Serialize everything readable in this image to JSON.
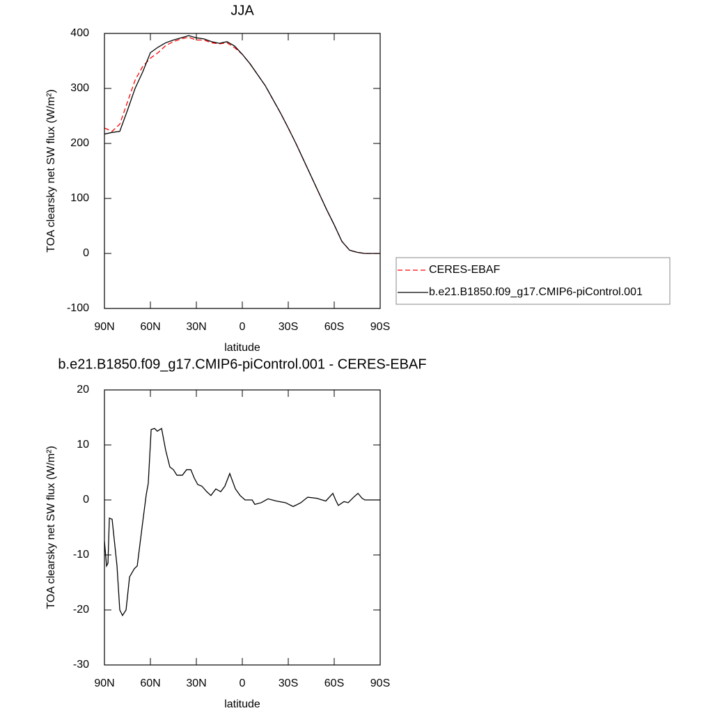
{
  "chart_data": [
    {
      "type": "line",
      "title": "JJA",
      "x_label": "latitude",
      "y_label": "TOA clearsky net SW flux (W/m²)",
      "x": [
        90,
        85,
        80,
        75,
        70,
        65,
        60,
        55,
        50,
        45,
        40,
        35,
        30,
        25,
        20,
        15,
        10,
        5,
        0,
        -5,
        -10,
        -15,
        -20,
        -25,
        -30,
        -35,
        -40,
        -45,
        -50,
        -55,
        -60,
        -65,
        -70,
        -75,
        -80,
        -85,
        -90
      ],
      "series": [
        {
          "name": "CERES-EBAF",
          "color": "#ff0000",
          "style": "dashed",
          "values": [
            228,
            222,
            235,
            275,
            315,
            340,
            355,
            365,
            378,
            385,
            390,
            393,
            388,
            388,
            383,
            381,
            383,
            374,
            362,
            345,
            325,
            305,
            280,
            255,
            228,
            200,
            170,
            140,
            110,
            80,
            52,
            22,
            6,
            2,
            0,
            0,
            0
          ]
        },
        {
          "name": "b.e21.B1850.f09_g17.CMIP6-piControl.001",
          "color": "#000000",
          "style": "solid",
          "values": [
            217,
            220,
            222,
            260,
            300,
            330,
            365,
            375,
            383,
            388,
            392,
            396,
            392,
            390,
            385,
            382,
            385,
            377,
            362,
            345,
            325,
            305,
            280,
            255,
            228,
            200,
            170,
            140,
            110,
            80,
            52,
            22,
            6,
            2,
            0,
            0,
            0
          ]
        }
      ],
      "xlim": [
        90,
        -90
      ],
      "xticks": [
        {
          "value": 90,
          "label": "90N"
        },
        {
          "value": 60,
          "label": "60N"
        },
        {
          "value": 30,
          "label": "30N"
        },
        0,
        {
          "value": -30,
          "label": "30S"
        },
        {
          "value": -60,
          "label": "60S"
        },
        {
          "value": -90,
          "label": "90S"
        }
      ],
      "ylim": [
        -100,
        400
      ],
      "yticks": [
        -100,
        0,
        100,
        200,
        300,
        400
      ],
      "legend": "right"
    },
    {
      "type": "line",
      "title": "b.e21.B1850.f09_g17.CMIP6-piControl.001 - CERES-EBAF",
      "x_label": "latitude",
      "y_label": "TOA clearsky net SW flux (W/m²)",
      "x": [
        90,
        88.6,
        87.7,
        86.8,
        85,
        81.8,
        80,
        78.2,
        75.9,
        73.6,
        70.5,
        68.6,
        65,
        62.7,
        61.4,
        59.5,
        57.3,
        55.5,
        52.7,
        50,
        47.3,
        45,
        42.7,
        39.1,
        36.4,
        33.6,
        31.4,
        29.1,
        26.4,
        23.2,
        20.5,
        17.3,
        14.1,
        11.4,
        8.2,
        4.5,
        1.4,
        -1.8,
        -6.4,
        -8.2,
        -12.3,
        -16.8,
        -22.3,
        -28.2,
        -33.2,
        -38.2,
        -42.7,
        -48.6,
        -54.5,
        -59.1,
        -60.9,
        -62.7,
        -66.4,
        -69.1,
        -72.7,
        -75.5,
        -78.2,
        -80,
        -90
      ],
      "series": [
        {
          "name": "b.e21.B1850.f09_g17.CMIP6-piControl.001 - CERES-EBAF",
          "color": "#000000",
          "style": "solid",
          "values": [
            -7.5,
            -12,
            -11.5,
            -3.3,
            -3.5,
            -12,
            -20,
            -21,
            -20,
            -14,
            -12.5,
            -12,
            -4,
            1,
            3,
            12.8,
            13,
            12.5,
            13,
            9,
            6,
            5.5,
            4.5,
            4.5,
            5.5,
            5.5,
            4,
            2.8,
            2.5,
            1.5,
            0.8,
            2,
            1.5,
            2.5,
            4.8,
            2,
            0.8,
            0,
            0,
            -0.8,
            -0.5,
            0.2,
            -0.2,
            -0.5,
            -1.2,
            -0.5,
            0.5,
            0.3,
            -0.2,
            1.2,
            0,
            -1,
            -0.3,
            -0.5,
            0.5,
            1.2,
            0.3,
            0,
            0
          ]
        }
      ],
      "xlim": [
        90,
        -90
      ],
      "xticks": [
        {
          "value": 90,
          "label": "90N"
        },
        {
          "value": 60,
          "label": "60N"
        },
        {
          "value": 30,
          "label": "30N"
        },
        0,
        {
          "value": -30,
          "label": "30S"
        },
        {
          "value": -60,
          "label": "60S"
        },
        {
          "value": -90,
          "label": "90S"
        }
      ],
      "ylim": [
        -30,
        20
      ],
      "yticks": [
        -30,
        -20,
        -10,
        0,
        10,
        20
      ]
    }
  ]
}
